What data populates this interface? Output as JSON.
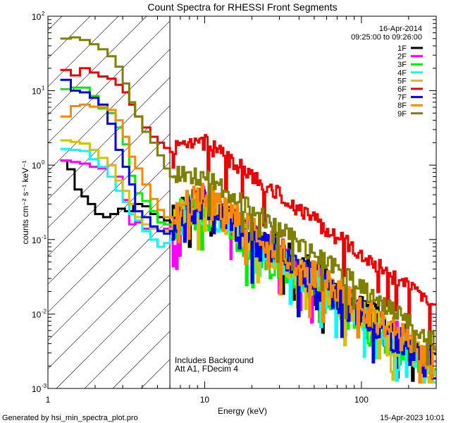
{
  "chart_data": {
    "type": "line",
    "title": "Count Spectra for RHESSI Front Segments",
    "xlabel": "Energy (keV)",
    "ylabel": "counts cm⁻² s⁻¹ keV⁻¹",
    "xscale": "log",
    "yscale": "log",
    "xlim": [
      1,
      300
    ],
    "ylim": [
      0.001,
      100
    ],
    "x_ticks": [
      {
        "value": 1,
        "label": "1"
      },
      {
        "value": 10,
        "label": "10"
      },
      {
        "value": 100,
        "label": "100"
      }
    ],
    "y_ticks": [
      {
        "value": 100,
        "base": "10",
        "exp": "2"
      },
      {
        "value": 10,
        "base": "10",
        "exp": "1"
      },
      {
        "value": 1,
        "base": "10",
        "exp": "0"
      },
      {
        "value": 0.1,
        "base": "10",
        "exp": "-1"
      },
      {
        "value": 0.01,
        "base": "10",
        "exp": "-2"
      },
      {
        "value": 0.001,
        "base": "10",
        "exp": "-3"
      }
    ],
    "attenuator_edge_keV": 6,
    "date": "16-Apr-2014",
    "time_range": "09:25:00 to 09:26:00",
    "annotation_lines": [
      "Includes Background",
      "Att A1, FDecim 4"
    ],
    "series": [
      {
        "name": "1F",
        "color": "#000000",
        "amp": 0.38,
        "noise": 0.9,
        "seed": 11,
        "points": [
          [
            1.2,
            1.15
          ],
          [
            1.33,
            0.88
          ],
          [
            1.48,
            0.47
          ],
          [
            1.64,
            0.38
          ],
          [
            1.8,
            0.3
          ],
          [
            2.0,
            0.22
          ],
          [
            2.25,
            0.2
          ],
          [
            2.5,
            0.22
          ],
          [
            2.8,
            0.26
          ],
          [
            3.1,
            0.24
          ],
          [
            3.5,
            0.3
          ],
          [
            4.0,
            0.28
          ],
          [
            4.5,
            0.22
          ],
          [
            5.0,
            0.2
          ],
          [
            5.5,
            0.18
          ],
          [
            6.0,
            0.17
          ]
        ]
      },
      {
        "name": "2F",
        "color": "#ff00ff",
        "amp": 0.32,
        "noise": 1.1,
        "seed": 22,
        "points": [
          [
            1.2,
            1.15
          ],
          [
            1.4,
            1.1
          ],
          [
            1.6,
            1.05
          ],
          [
            1.85,
            0.95
          ],
          [
            2.1,
            0.9
          ],
          [
            2.4,
            1.0
          ],
          [
            2.7,
            0.7
          ],
          [
            3.0,
            0.34
          ],
          [
            3.3,
            0.16
          ],
          [
            3.6,
            0.17
          ],
          [
            4.0,
            0.14
          ],
          [
            4.5,
            0.15
          ],
          [
            5.0,
            0.13
          ],
          [
            5.5,
            0.14
          ],
          [
            6.0,
            0.15
          ]
        ]
      },
      {
        "name": "3F",
        "color": "#00ee00",
        "amp": 0.25,
        "noise": 1.2,
        "seed": 33,
        "points": [
          [
            1.2,
            10.5
          ],
          [
            1.4,
            11.0
          ],
          [
            1.6,
            11.0
          ],
          [
            1.85,
            8.5
          ],
          [
            2.1,
            5.8
          ],
          [
            2.4,
            5.0
          ],
          [
            2.7,
            3.2
          ],
          [
            3.0,
            1.9
          ],
          [
            3.3,
            0.72
          ],
          [
            3.6,
            0.42
          ],
          [
            4.0,
            0.33
          ],
          [
            4.5,
            0.24
          ],
          [
            5.0,
            0.17
          ],
          [
            5.5,
            0.16
          ],
          [
            6.0,
            0.16
          ]
        ]
      },
      {
        "name": "4F",
        "color": "#00ffff",
        "amp": 0.28,
        "noise": 1.0,
        "seed": 44,
        "points": [
          [
            1.2,
            1.65
          ],
          [
            1.4,
            1.6
          ],
          [
            1.6,
            1.55
          ],
          [
            1.85,
            1.2
          ],
          [
            2.1,
            0.95
          ],
          [
            2.4,
            0.7
          ],
          [
            2.7,
            0.45
          ],
          [
            3.0,
            0.32
          ],
          [
            3.3,
            0.22
          ],
          [
            3.6,
            0.18
          ],
          [
            4.0,
            0.13
          ],
          [
            4.5,
            0.1
          ],
          [
            5.0,
            0.08
          ],
          [
            5.5,
            0.09
          ],
          [
            6.0,
            0.1
          ]
        ]
      },
      {
        "name": "5F",
        "color": "#d8c000",
        "amp": 0.3,
        "noise": 1.0,
        "seed": 55,
        "points": [
          [
            1.2,
            2.15
          ],
          [
            1.4,
            2.05
          ],
          [
            1.6,
            1.95
          ],
          [
            1.85,
            1.6
          ],
          [
            2.1,
            1.25
          ],
          [
            2.4,
            1.0
          ],
          [
            2.7,
            0.62
          ],
          [
            3.0,
            0.45
          ],
          [
            3.3,
            0.3
          ],
          [
            3.6,
            0.2
          ],
          [
            4.0,
            0.16
          ],
          [
            4.5,
            0.14
          ],
          [
            5.0,
            0.13
          ],
          [
            5.5,
            0.13
          ],
          [
            6.0,
            0.14
          ]
        ]
      },
      {
        "name": "6F",
        "color": "#ee0000",
        "amp": 2.0,
        "noise": 0.5,
        "seed": 66,
        "points": [
          [
            1.2,
            19
          ],
          [
            1.4,
            16
          ],
          [
            1.6,
            20
          ],
          [
            1.85,
            17.5
          ],
          [
            2.1,
            15.5
          ],
          [
            2.4,
            14.5
          ],
          [
            2.7,
            12
          ],
          [
            3.0,
            9.5
          ],
          [
            3.3,
            6.5
          ],
          [
            3.6,
            4.5
          ],
          [
            4.0,
            3.2
          ],
          [
            4.5,
            2.4
          ],
          [
            5.0,
            2.0
          ],
          [
            5.5,
            1.7
          ],
          [
            6.0,
            1.5
          ]
        ]
      },
      {
        "name": "7F",
        "color": "#0000ee",
        "amp": 0.3,
        "noise": 1.0,
        "seed": 77,
        "points": [
          [
            1.2,
            14
          ],
          [
            1.4,
            10
          ],
          [
            1.6,
            9.5
          ],
          [
            1.85,
            8.0
          ],
          [
            2.1,
            6.5
          ],
          [
            2.4,
            3.6
          ],
          [
            2.7,
            1.6
          ],
          [
            3.0,
            0.95
          ],
          [
            3.3,
            0.55
          ],
          [
            3.6,
            0.24
          ],
          [
            4.0,
            0.2
          ],
          [
            4.5,
            0.15
          ],
          [
            5.0,
            0.13
          ],
          [
            5.5,
            0.12
          ],
          [
            6.0,
            0.13
          ]
        ]
      },
      {
        "name": "8F",
        "color": "#ff8800",
        "amp": 0.38,
        "noise": 0.9,
        "seed": 88,
        "points": [
          [
            1.2,
            4.5
          ],
          [
            1.4,
            6.2
          ],
          [
            1.6,
            6.5
          ],
          [
            1.85,
            6.1
          ],
          [
            2.1,
            6.0
          ],
          [
            2.4,
            5.5
          ],
          [
            2.7,
            4.0
          ],
          [
            3.0,
            2.4
          ],
          [
            3.3,
            1.3
          ],
          [
            3.6,
            0.9
          ],
          [
            4.0,
            0.55
          ],
          [
            4.5,
            0.35
          ],
          [
            5.0,
            0.25
          ],
          [
            5.5,
            0.2
          ],
          [
            6.0,
            0.2
          ]
        ]
      },
      {
        "name": "9F",
        "color": "#808000",
        "amp": 0.7,
        "noise": 0.6,
        "seed": 99,
        "points": [
          [
            1.2,
            50
          ],
          [
            1.4,
            52
          ],
          [
            1.6,
            48
          ],
          [
            1.85,
            42
          ],
          [
            2.1,
            36
          ],
          [
            2.4,
            29
          ],
          [
            2.7,
            21
          ],
          [
            3.0,
            12.5
          ],
          [
            3.3,
            7.0
          ],
          [
            3.6,
            4.5
          ],
          [
            4.0,
            2.8
          ],
          [
            4.5,
            2.0
          ],
          [
            5.0,
            1.35
          ],
          [
            5.5,
            0.9
          ],
          [
            6.0,
            0.7
          ]
        ]
      }
    ]
  },
  "footer": {
    "left": "Generated by hsi_min_spectra_plot.pro",
    "right": "15-Apr-2023 10:01"
  }
}
